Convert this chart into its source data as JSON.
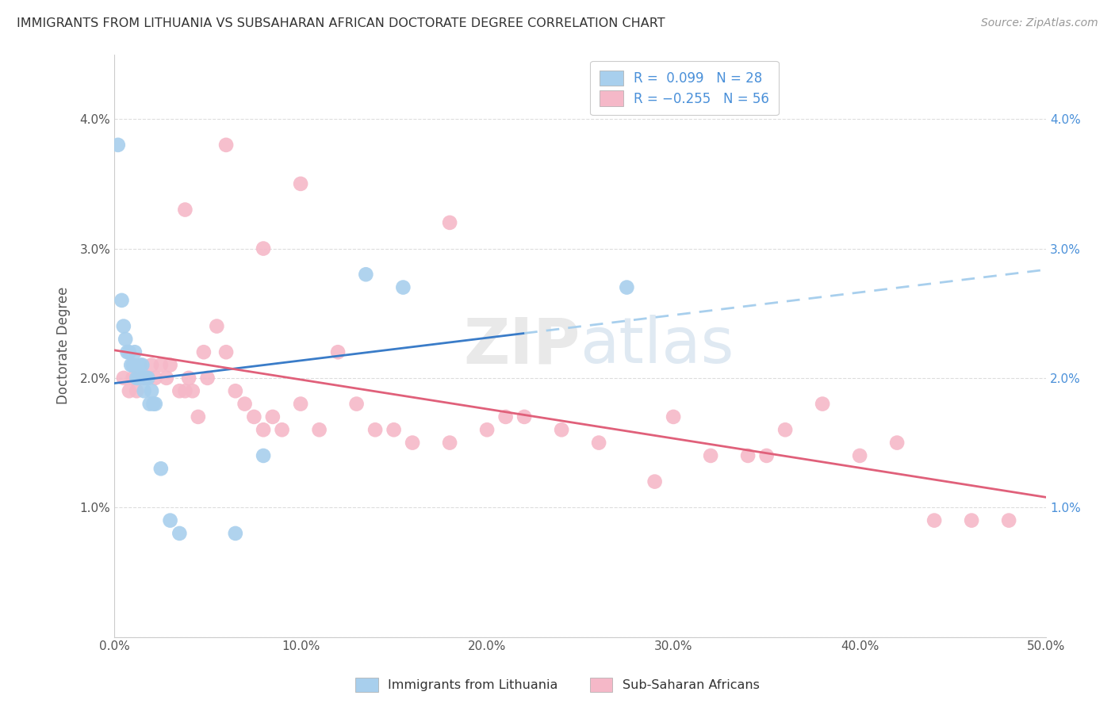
{
  "title": "IMMIGRANTS FROM LITHUANIA VS SUBSAHARAN AFRICAN DOCTORATE DEGREE CORRELATION CHART",
  "source": "Source: ZipAtlas.com",
  "ylabel": "Doctorate Degree",
  "xlim": [
    0.0,
    0.5
  ],
  "ylim": [
    0.0,
    0.045
  ],
  "xticks": [
    0.0,
    0.1,
    0.2,
    0.3,
    0.4,
    0.5
  ],
  "xticklabels": [
    "0.0%",
    "10.0%",
    "20.0%",
    "30.0%",
    "40.0%",
    "50.0%"
  ],
  "yticks": [
    0.0,
    0.01,
    0.02,
    0.03,
    0.04
  ],
  "yticklabels": [
    "",
    "1.0%",
    "2.0%",
    "3.0%",
    "4.0%"
  ],
  "legend1_r": "0.099",
  "legend1_n": "28",
  "legend2_r": "-0.255",
  "legend2_n": "56",
  "legend_labels": [
    "Immigrants from Lithuania",
    "Sub-Saharan Africans"
  ],
  "color_blue": "#A8CFED",
  "color_pink": "#F5B8C8",
  "color_blue_line": "#3A7CC8",
  "color_blue_line_dash": "#A8CFED",
  "color_pink_line": "#E0607A",
  "background_color": "#FFFFFF",
  "grid_color": "#DDDDDD",
  "blue_x": [
    0.002,
    0.004,
    0.005,
    0.006,
    0.007,
    0.008,
    0.009,
    0.01,
    0.011,
    0.012,
    0.013,
    0.014,
    0.015,
    0.016,
    0.017,
    0.018,
    0.019,
    0.02,
    0.021,
    0.022,
    0.025,
    0.03,
    0.035,
    0.065,
    0.08,
    0.135,
    0.155,
    0.275
  ],
  "blue_y": [
    0.038,
    0.026,
    0.024,
    0.023,
    0.022,
    0.022,
    0.021,
    0.021,
    0.022,
    0.02,
    0.02,
    0.021,
    0.021,
    0.019,
    0.02,
    0.02,
    0.018,
    0.019,
    0.018,
    0.018,
    0.013,
    0.009,
    0.008,
    0.008,
    0.014,
    0.028,
    0.027,
    0.027
  ],
  "pink_x": [
    0.005,
    0.008,
    0.01,
    0.012,
    0.015,
    0.018,
    0.02,
    0.022,
    0.025,
    0.028,
    0.03,
    0.035,
    0.038,
    0.04,
    0.042,
    0.045,
    0.048,
    0.05,
    0.055,
    0.06,
    0.065,
    0.07,
    0.075,
    0.08,
    0.085,
    0.09,
    0.1,
    0.11,
    0.12,
    0.13,
    0.14,
    0.15,
    0.16,
    0.18,
    0.2,
    0.21,
    0.22,
    0.24,
    0.26,
    0.29,
    0.3,
    0.32,
    0.34,
    0.36,
    0.38,
    0.4,
    0.42,
    0.44,
    0.46,
    0.48,
    0.038,
    0.06,
    0.08,
    0.1,
    0.18,
    0.35
  ],
  "pink_y": [
    0.02,
    0.019,
    0.02,
    0.019,
    0.02,
    0.02,
    0.021,
    0.02,
    0.021,
    0.02,
    0.021,
    0.019,
    0.019,
    0.02,
    0.019,
    0.017,
    0.022,
    0.02,
    0.024,
    0.022,
    0.019,
    0.018,
    0.017,
    0.016,
    0.017,
    0.016,
    0.018,
    0.016,
    0.022,
    0.018,
    0.016,
    0.016,
    0.015,
    0.015,
    0.016,
    0.017,
    0.017,
    0.016,
    0.015,
    0.012,
    0.017,
    0.014,
    0.014,
    0.016,
    0.018,
    0.014,
    0.015,
    0.009,
    0.009,
    0.009,
    0.033,
    0.038,
    0.03,
    0.035,
    0.032,
    0.014
  ]
}
